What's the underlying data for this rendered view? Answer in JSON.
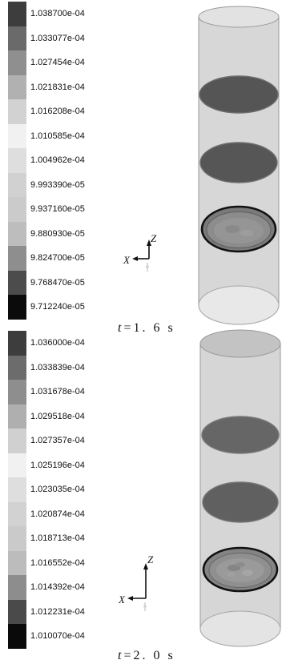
{
  "panels": [
    {
      "legend": [
        {
          "value": "1.038700e-04",
          "color": "#3d3d3d"
        },
        {
          "value": "1.033077e-04",
          "color": "#6a6a6a"
        },
        {
          "value": "1.027454e-04",
          "color": "#8f8f8f"
        },
        {
          "value": "1.021831e-04",
          "color": "#b1b1b1"
        },
        {
          "value": "1.016208e-04",
          "color": "#d2d2d2"
        },
        {
          "value": "1.010585e-04",
          "color": "#f1f1f1"
        },
        {
          "value": "1.004962e-04",
          "color": "#dedede"
        },
        {
          "value": "9.993390e-05",
          "color": "#d1d1d1"
        },
        {
          "value": "9.937160e-05",
          "color": "#cbcbcb"
        },
        {
          "value": "9.880930e-05",
          "color": "#bdbdbd"
        },
        {
          "value": "9.824700e-05",
          "color": "#8e8e8e"
        },
        {
          "value": "9.768470e-05",
          "color": "#4c4c4c"
        },
        {
          "value": "9.712240e-05",
          "color": "#0b0b0b"
        }
      ],
      "axes": {
        "z": "Z",
        "x": "X"
      },
      "caption": {
        "variable": "t",
        "value": "=1. 6 s"
      }
    },
    {
      "legend": [
        {
          "value": "1.036000e-04",
          "color": "#3d3d3d"
        },
        {
          "value": "1.033839e-04",
          "color": "#6c6c6c"
        },
        {
          "value": "1.031678e-04",
          "color": "#8e8e8e"
        },
        {
          "value": "1.029518e-04",
          "color": "#afafaf"
        },
        {
          "value": "1.027357e-04",
          "color": "#d0d0d0"
        },
        {
          "value": "1.025196e-04",
          "color": "#f1f1f1"
        },
        {
          "value": "1.023035e-04",
          "color": "#dedede"
        },
        {
          "value": "1.020874e-04",
          "color": "#d2d2d2"
        },
        {
          "value": "1.018713e-04",
          "color": "#cacaca"
        },
        {
          "value": "1.016552e-04",
          "color": "#bcbcbc"
        },
        {
          "value": "1.014392e-04",
          "color": "#8d8d8d"
        },
        {
          "value": "1.012231e-04",
          "color": "#4a4a4a"
        },
        {
          "value": "1.010070e-04",
          "color": "#0a0a0a"
        }
      ],
      "axes": {
        "z": "Z",
        "x": "X"
      },
      "caption": {
        "variable": "t",
        "value": "=2. 0 s"
      }
    }
  ]
}
